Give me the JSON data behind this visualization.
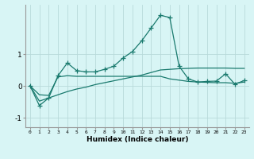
{
  "xlabel": "Humidex (Indice chaleur)",
  "x": [
    0,
    1,
    2,
    3,
    4,
    5,
    6,
    7,
    8,
    9,
    10,
    11,
    12,
    13,
    14,
    15,
    16,
    17,
    18,
    19,
    20,
    21,
    22,
    23
  ],
  "line1": [
    0.0,
    -0.62,
    -0.38,
    0.32,
    0.72,
    0.48,
    0.44,
    0.44,
    0.52,
    0.62,
    0.88,
    1.08,
    1.42,
    1.82,
    2.22,
    2.15,
    0.62,
    0.22,
    0.12,
    0.14,
    0.15,
    0.38,
    0.05,
    0.17
  ],
  "line2": [
    0.0,
    -0.28,
    -0.3,
    0.28,
    0.32,
    0.3,
    0.3,
    0.3,
    0.3,
    0.3,
    0.3,
    0.3,
    0.3,
    0.3,
    0.3,
    0.22,
    0.18,
    0.14,
    0.12,
    0.11,
    0.1,
    0.1,
    0.08,
    0.12
  ],
  "line3": [
    0.0,
    -0.48,
    -0.38,
    -0.28,
    -0.18,
    -0.1,
    -0.04,
    0.04,
    0.1,
    0.16,
    0.22,
    0.28,
    0.34,
    0.42,
    0.5,
    0.52,
    0.54,
    0.55,
    0.56,
    0.56,
    0.56,
    0.56,
    0.55,
    0.55
  ],
  "line_color": "#1a7a6e",
  "bg_color": "#d8f5f5",
  "grid_color": "#b8dada",
  "ylim": [
    -1.3,
    2.55
  ],
  "yticks": [
    -1,
    0,
    1
  ],
  "marker": "+",
  "markersize": 4,
  "linewidth": 0.9
}
